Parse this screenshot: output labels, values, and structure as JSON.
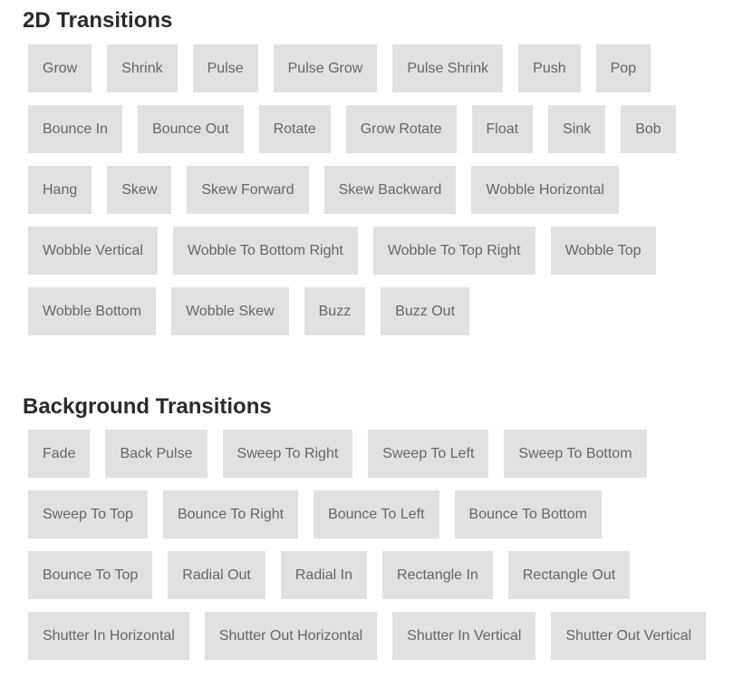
{
  "sections": [
    {
      "title": "2D Transitions",
      "buttons": [
        "Grow",
        "Shrink",
        "Pulse",
        "Pulse Grow",
        "Pulse Shrink",
        "Push",
        "Pop",
        "Bounce In",
        "Bounce Out",
        "Rotate",
        "Grow Rotate",
        "Float",
        "Sink",
        "Bob",
        "Hang",
        "Skew",
        "Skew Forward",
        "Skew Backward",
        "Wobble Horizontal",
        "Wobble Vertical",
        "Wobble To Bottom Right",
        "Wobble To Top Right",
        "Wobble Top",
        "Wobble Bottom",
        "Wobble Skew",
        "Buzz",
        "Buzz Out"
      ]
    },
    {
      "title": "Background Transitions",
      "buttons": [
        "Fade",
        "Back Pulse",
        "Sweep To Right",
        "Sweep To Left",
        "Sweep To Bottom",
        "Sweep To Top",
        "Bounce To Right",
        "Bounce To Left",
        "Bounce To Bottom",
        "Bounce To Top",
        "Radial Out",
        "Radial In",
        "Rectangle In",
        "Rectangle Out",
        "Shutter In Horizontal",
        "Shutter Out Horizontal",
        "Shutter In Vertical",
        "Shutter Out Vertical"
      ]
    }
  ],
  "colors": {
    "button_bg": "#e1e1e1",
    "button_text": "#666666",
    "heading_text": "#2b2b2b"
  }
}
